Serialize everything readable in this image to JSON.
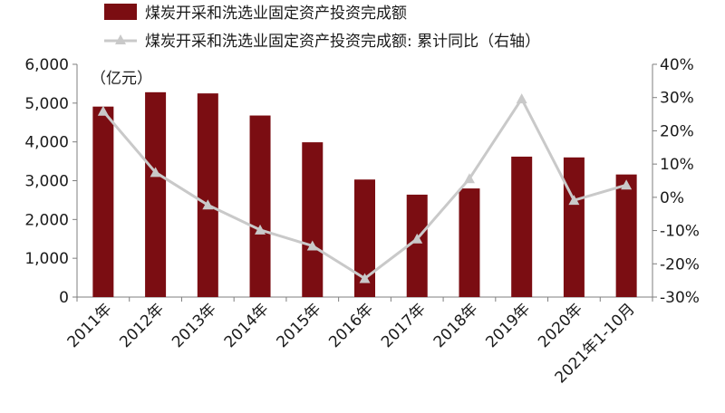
{
  "chart_data": {
    "type": "bar",
    "categories": [
      "2011年",
      "2012年",
      "2013年",
      "2014年",
      "2015年",
      "2016年",
      "2017年",
      "2018年",
      "2019年",
      "2020年",
      "2021年1-10月"
    ],
    "series": [
      {
        "name": "煤炭开采和洗选业固定资产投资完成额",
        "type": "bar",
        "axis": "left",
        "color": "#7b0d12",
        "values": [
          4910,
          5280,
          5250,
          4680,
          3990,
          3030,
          2640,
          2800,
          3620,
          3600,
          3160
        ]
      },
      {
        "name": "煤炭开采和洗选业固定资产投资完成额: 累计同比（右轴）",
        "type": "line",
        "axis": "right",
        "color": "#c9c9c9",
        "marker": "triangle",
        "values": [
          25.9,
          7.5,
          -2.3,
          -9.8,
          -14.6,
          -24.4,
          -12.5,
          5.6,
          29.6,
          -0.9,
          3.7
        ]
      }
    ],
    "y_left": {
      "unit_label": "（亿元）",
      "range": [
        0,
        6000
      ],
      "ticks": [
        0,
        1000,
        2000,
        3000,
        4000,
        5000,
        6000
      ],
      "tick_labels": [
        "0",
        "1,000",
        "2,000",
        "3,000",
        "4,000",
        "5,000",
        "6,000"
      ]
    },
    "y_right": {
      "range": [
        -30,
        40
      ],
      "ticks": [
        -30,
        -20,
        -10,
        0,
        10,
        20,
        30,
        40
      ],
      "tick_labels": [
        "-30%",
        "-20%",
        "-10%",
        "0%",
        "10%",
        "20%",
        "30%",
        "40%"
      ]
    },
    "grid": false,
    "legend_position": "top-left"
  }
}
